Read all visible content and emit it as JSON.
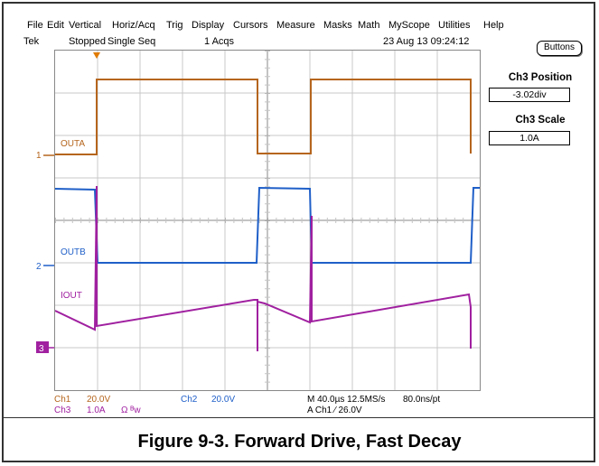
{
  "menu": [
    "File",
    "Edit",
    "Vertical",
    "Horiz/Acq",
    "Trig",
    "Display",
    "Cursors",
    "Measure",
    "Masks",
    "Math",
    "MyScope",
    "Utilities",
    "Help"
  ],
  "status": {
    "brand": "Tek",
    "state": "Stopped",
    "mode": "Single Seq",
    "acqs": "1 Acqs",
    "datetime": "23 Aug 13 09:24:12"
  },
  "side_panel": {
    "buttons_label": "Buttons",
    "ch3_position_title": "Ch3 Position",
    "ch3_position_value": "-3.02div",
    "ch3_scale_title": "Ch3 Scale",
    "ch3_scale_value": "1.0A"
  },
  "traces": {
    "outa_label": "OUTA",
    "outb_label": "OUTB",
    "iout_label": "IOUT",
    "ch1_marker": "1",
    "ch2_marker": "2",
    "ch3_marker": "3",
    "colors": {
      "ch1": "#b5651d",
      "ch2": "#1f5fc8",
      "ch3": "#a020a0",
      "grid": "#c8c8c8"
    }
  },
  "readouts": {
    "ch1_name": "Ch1",
    "ch1_scale": "20.0V",
    "ch3_name": "Ch3",
    "ch3_scale": "1.0A",
    "ch3_extra": "Ω ᴮw",
    "ch2_name": "Ch2",
    "ch2_scale": "20.0V",
    "timebase": "M 40.0µs 12.5MS/s",
    "resolution": "80.0ns/pt",
    "trigger": "A  Ch1  ⁄  26.0V"
  },
  "caption": "Figure 9-3. Forward Drive, Fast Decay"
}
